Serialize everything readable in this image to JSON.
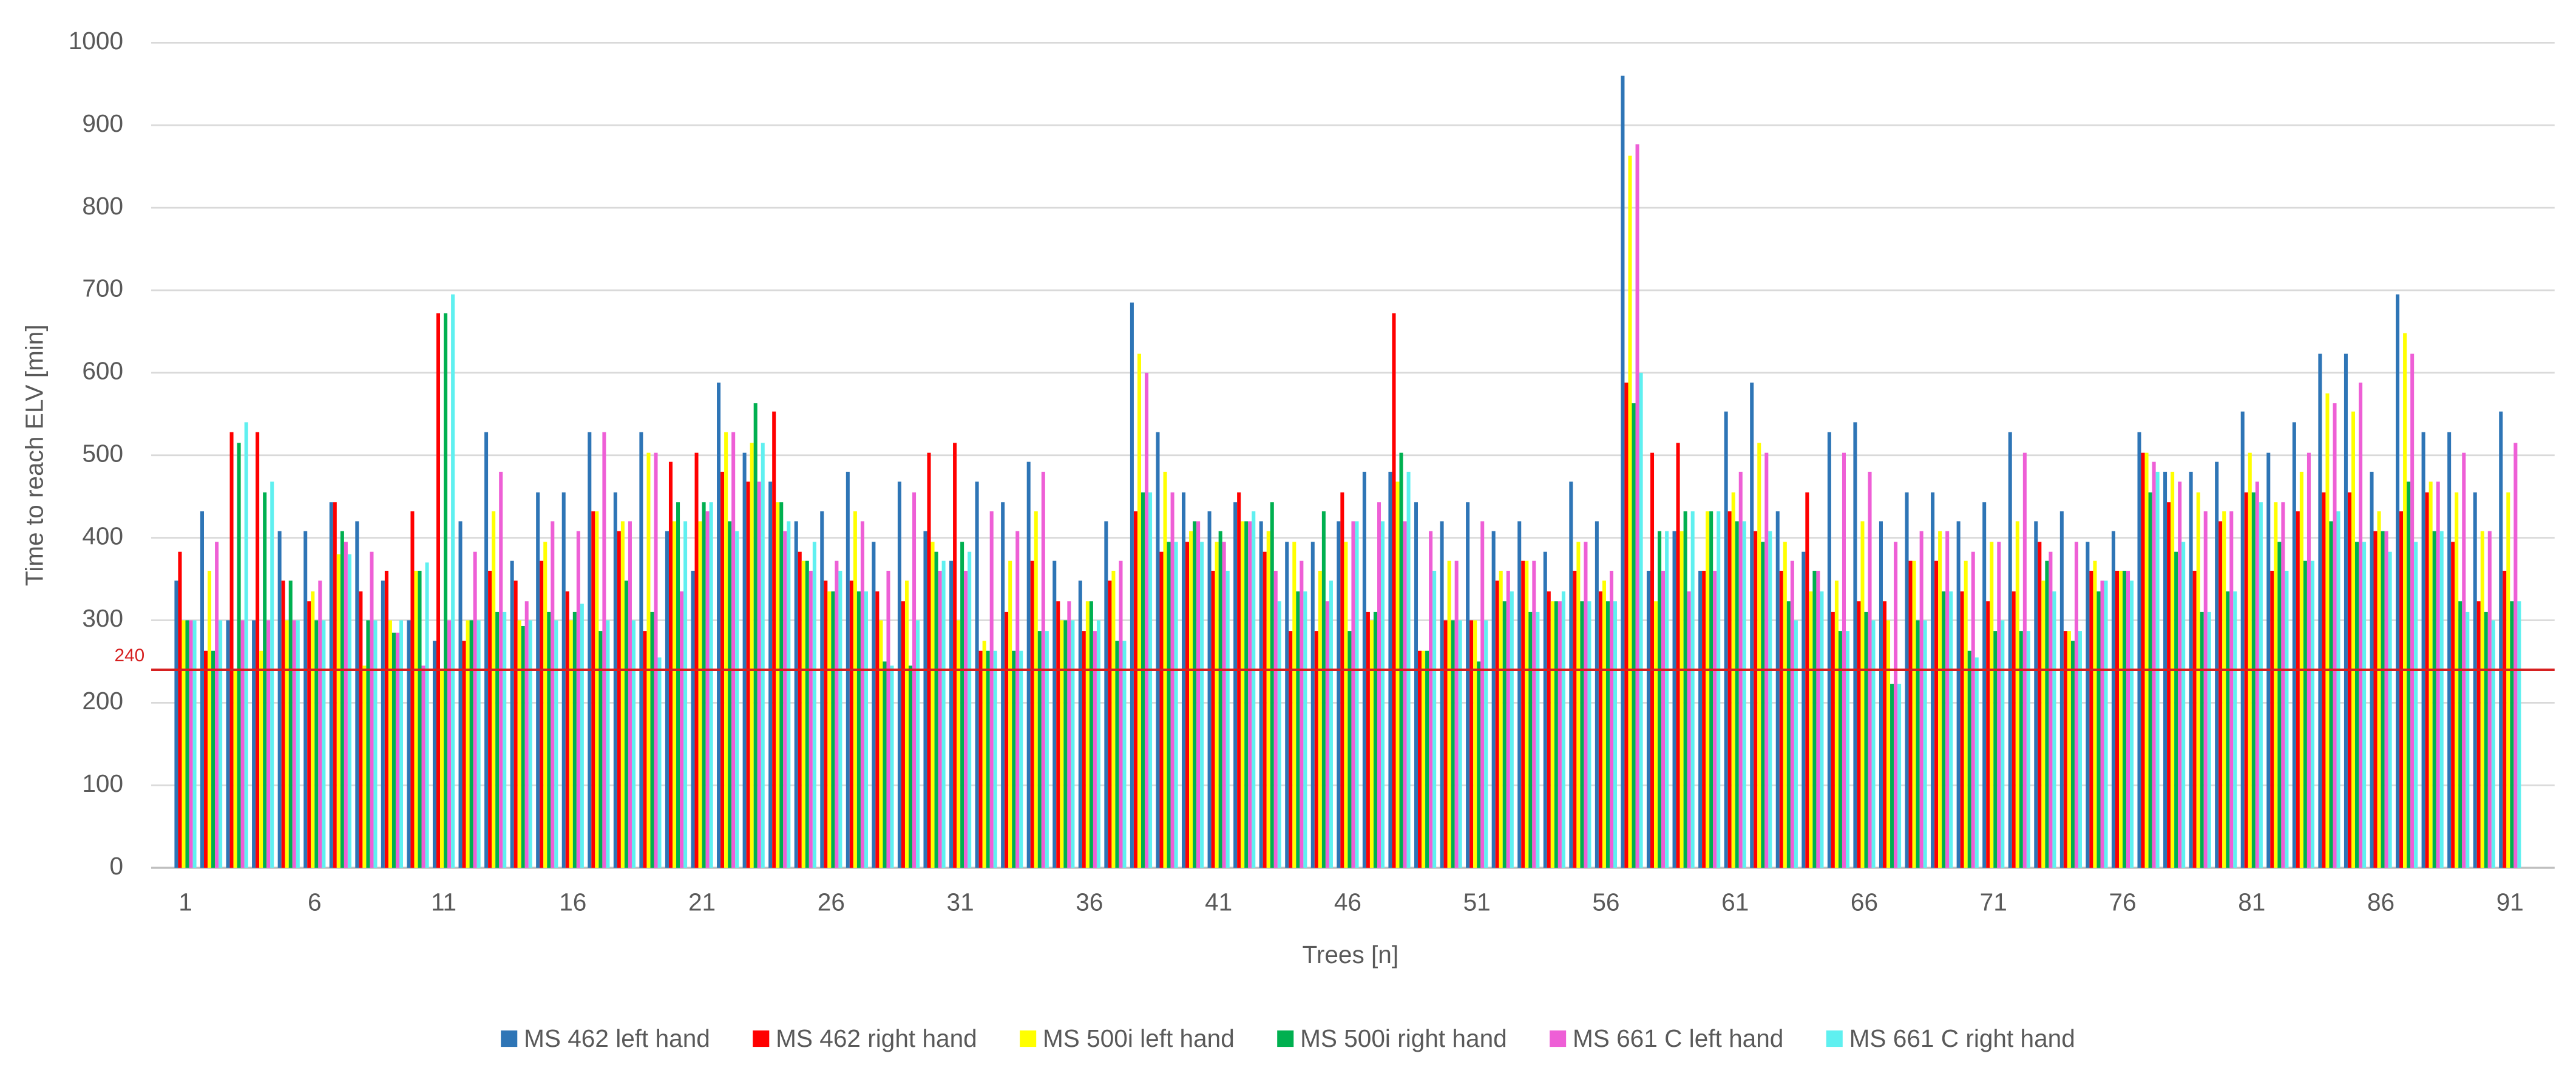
{
  "chart_data": {
    "type": "bar",
    "x_label": "Trees [n]",
    "y_label": "Time to reach ELV [min]",
    "categories": [
      "1",
      null,
      null,
      null,
      null,
      "6",
      null,
      null,
      null,
      null,
      "11",
      null,
      null,
      null,
      null,
      "16",
      null,
      null,
      null,
      null,
      "21",
      null,
      null,
      null,
      null,
      "26",
      null,
      null,
      null,
      null,
      "31",
      null,
      null,
      null,
      null,
      "36",
      null,
      null,
      null,
      null,
      "41",
      null,
      null,
      null,
      null,
      "46",
      null,
      null,
      null,
      null,
      "51",
      null,
      null,
      null,
      null,
      "56",
      null,
      null,
      null,
      null,
      "61",
      null,
      null,
      null,
      null,
      "66",
      null,
      null,
      null,
      null,
      "71",
      null,
      null,
      null,
      null,
      "76",
      null,
      null,
      null,
      null,
      "81",
      null,
      null,
      null,
      null,
      "86",
      null,
      null,
      null,
      null,
      "91"
    ],
    "series": [
      {
        "name": "MS 462 left hand",
        "color": "#2e75b6",
        "values": [
          348,
          432,
          300,
          300,
          408,
          408,
          443,
          420,
          348,
          300,
          275,
          420,
          528,
          372,
          455,
          455,
          528,
          455,
          528,
          408,
          360,
          588,
          503,
          468,
          420,
          432,
          480,
          395,
          468,
          408,
          372,
          468,
          443,
          492,
          372,
          348,
          420,
          685,
          528,
          455,
          432,
          443,
          420,
          395,
          395,
          420,
          480,
          480,
          443,
          420,
          443,
          408,
          420,
          383,
          468,
          420,
          960,
          360,
          408,
          360,
          553,
          588,
          432,
          383,
          528,
          540,
          420,
          455,
          455,
          420,
          443,
          528,
          420,
          432,
          395,
          408,
          528,
          480,
          480,
          492,
          553,
          503,
          540,
          623,
          623,
          480,
          695,
          528,
          528,
          455,
          553
        ]
      },
      {
        "name": "MS 462 right hand",
        "color": "#ff0000",
        "values": [
          383,
          263,
          528,
          528,
          348,
          323,
          443,
          335,
          360,
          432,
          672,
          275,
          360,
          348,
          372,
          335,
          432,
          408,
          287,
          492,
          503,
          480,
          468,
          553,
          383,
          348,
          348,
          335,
          323,
          503,
          515,
          263,
          310,
          372,
          323,
          287,
          348,
          432,
          383,
          395,
          360,
          455,
          383,
          287,
          287,
          455,
          310,
          672,
          263,
          300,
          300,
          348,
          372,
          335,
          360,
          335,
          588,
          503,
          515,
          360,
          432,
          408,
          360,
          455,
          310,
          323,
          323,
          372,
          372,
          335,
          323,
          335,
          395,
          287,
          360,
          360,
          503,
          443,
          360,
          420,
          455,
          360,
          432,
          455,
          455,
          408,
          432,
          455,
          395,
          323,
          360
        ]
      },
      {
        "name": "MS 500i left hand",
        "color": "#ffff00",
        "values": [
          300,
          360,
          240,
          263,
          300,
          335,
          380,
          245,
          300,
          360,
          240,
          300,
          432,
          300,
          395,
          300,
          432,
          420,
          503,
          420,
          420,
          528,
          515,
          443,
          372,
          335,
          432,
          300,
          348,
          395,
          300,
          275,
          372,
          432,
          300,
          323,
          360,
          623,
          480,
          408,
          395,
          420,
          408,
          395,
          360,
          395,
          300,
          468,
          263,
          372,
          300,
          360,
          372,
          323,
          395,
          348,
          863,
          323,
          408,
          432,
          455,
          515,
          395,
          335,
          348,
          420,
          300,
          372,
          408,
          372,
          395,
          420,
          348,
          287,
          372,
          360,
          503,
          480,
          455,
          432,
          503,
          443,
          480,
          575,
          553,
          432,
          648,
          468,
          455,
          408,
          455
        ]
      },
      {
        "name": "MS 500i right hand",
        "color": "#00b050",
        "values": [
          300,
          263,
          515,
          455,
          348,
          300,
          408,
          300,
          285,
          360,
          672,
          300,
          310,
          293,
          310,
          310,
          287,
          348,
          310,
          443,
          443,
          420,
          563,
          443,
          372,
          335,
          335,
          250,
          245,
          383,
          395,
          263,
          263,
          287,
          300,
          323,
          275,
          455,
          395,
          420,
          408,
          420,
          443,
          335,
          432,
          287,
          310,
          503,
          263,
          300,
          250,
          323,
          310,
          323,
          323,
          323,
          563,
          408,
          432,
          432,
          420,
          395,
          323,
          360,
          287,
          310,
          223,
          300,
          335,
          263,
          287,
          287,
          372,
          275,
          335,
          360,
          455,
          383,
          310,
          335,
          455,
          395,
          372,
          420,
          395,
          408,
          468,
          408,
          323,
          310,
          323
        ]
      },
      {
        "name": "MS 661 C left hand",
        "color": "#ee5fd6",
        "values": [
          300,
          395,
          300,
          300,
          300,
          348,
          395,
          383,
          285,
          245,
          300,
          383,
          480,
          323,
          420,
          408,
          528,
          420,
          503,
          335,
          432,
          528,
          468,
          408,
          360,
          372,
          420,
          360,
          455,
          360,
          360,
          432,
          408,
          480,
          323,
          287,
          372,
          600,
          455,
          420,
          395,
          420,
          360,
          372,
          323,
          420,
          443,
          420,
          408,
          372,
          420,
          360,
          372,
          323,
          395,
          360,
          877,
          360,
          335,
          360,
          480,
          503,
          372,
          360,
          503,
          480,
          395,
          408,
          408,
          383,
          395,
          503,
          383,
          395,
          348,
          360,
          492,
          468,
          432,
          432,
          468,
          443,
          503,
          563,
          588,
          408,
          623,
          468,
          503,
          408,
          515
        ]
      },
      {
        "name": "MS 661 C right hand",
        "color": "#5ff0f0",
        "values": [
          300,
          300,
          540,
          468,
          300,
          300,
          380,
          300,
          300,
          370,
          695,
          300,
          310,
          300,
          300,
          320,
          300,
          300,
          255,
          420,
          443,
          408,
          515,
          420,
          395,
          360,
          335,
          245,
          300,
          372,
          383,
          263,
          263,
          287,
          300,
          300,
          275,
          455,
          395,
          395,
          360,
          432,
          323,
          335,
          348,
          420,
          420,
          480,
          360,
          300,
          300,
          335,
          310,
          335,
          323,
          323,
          600,
          408,
          432,
          432,
          420,
          408,
          300,
          335,
          287,
          300,
          223,
          300,
          335,
          255,
          300,
          287,
          335,
          287,
          348,
          348,
          480,
          395,
          310,
          335,
          443,
          360,
          372,
          432,
          395,
          383,
          395,
          408,
          310,
          300,
          323
        ]
      }
    ],
    "ylim": [
      0,
      1000
    ],
    "yticks": [
      0,
      100,
      200,
      300,
      400,
      500,
      600,
      700,
      800,
      900,
      1000
    ],
    "grid": true,
    "reference_line": 240,
    "reference_color": "#d62020"
  }
}
